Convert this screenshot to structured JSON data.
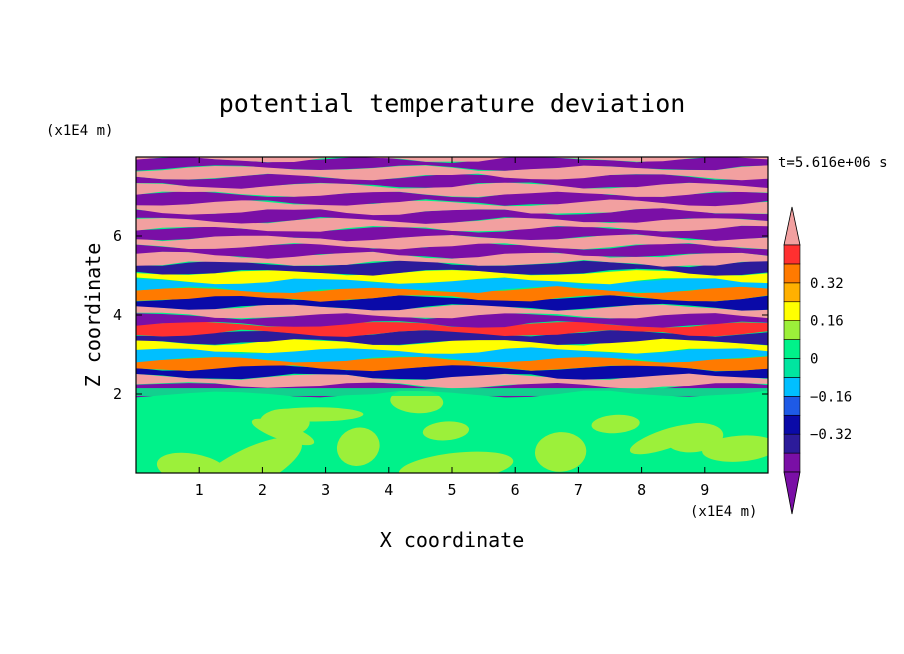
{
  "chart_data": {
    "type": "heatmap",
    "title": "potential temperature deviation",
    "time_label": "t=5.616e+06 s",
    "xlabel": "X coordinate",
    "ylabel": "Z coordinate",
    "x_unit": "(x1E4 m)",
    "y_unit": "(x1E4 m)",
    "xlim": [
      0,
      10
    ],
    "ylim": [
      0,
      8
    ],
    "x_ticks": [
      "1",
      "2",
      "3",
      "4",
      "5",
      "6",
      "7",
      "8",
      "9"
    ],
    "y_ticks": [
      "2",
      "4",
      "6"
    ],
    "colorbar": {
      "levels": [
        -0.48,
        -0.4,
        -0.32,
        -0.24,
        -0.16,
        -0.08,
        0,
        0.08,
        0.16,
        0.24,
        0.32,
        0.4,
        0.48
      ],
      "labels": [
        "0.32",
        "0.16",
        "0",
        "−0.16",
        "−0.32"
      ],
      "colors": [
        "#7a0fa6",
        "#2c1b9a",
        "#0a0aa8",
        "#1e5ae6",
        "#00bfff",
        "#00e5a0",
        "#00f28a",
        "#9cf03a",
        "#ffff00",
        "#ffb000",
        "#ff7a00",
        "#ff3030",
        "#f2a0a0"
      ],
      "extend": "both"
    }
  }
}
